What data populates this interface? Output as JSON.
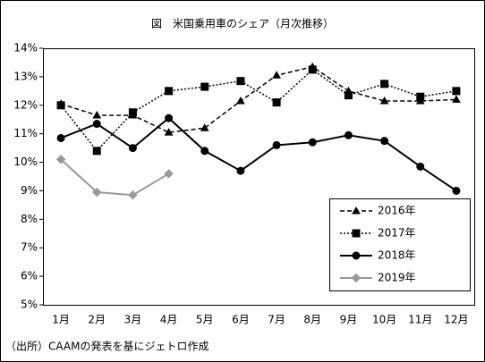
{
  "chart_data": {
    "type": "line",
    "title": "図　米国乗用車のシェア（月次推移）",
    "note": "（出所）CAAMの発表を基にジェトロ作成",
    "categories": [
      "1月",
      "2月",
      "3月",
      "4月",
      "5月",
      "6月",
      "7月",
      "8月",
      "9月",
      "10月",
      "11月",
      "12月"
    ],
    "series": [
      {
        "name": "2016年",
        "color": "#000000",
        "dash": "dashed",
        "marker": "triangle",
        "values": [
          12.05,
          11.65,
          11.65,
          11.05,
          11.2,
          12.15,
          13.05,
          13.35,
          12.5,
          12.15,
          12.15,
          12.2
        ]
      },
      {
        "name": "2017年",
        "color": "#000000",
        "dash": "dotted",
        "marker": "square",
        "values": [
          12.0,
          10.4,
          11.75,
          12.5,
          12.65,
          12.85,
          12.1,
          13.25,
          12.35,
          12.75,
          12.3,
          12.5
        ]
      },
      {
        "name": "2018年",
        "color": "#000000",
        "dash": "solid",
        "marker": "circle",
        "values": [
          10.85,
          11.35,
          10.5,
          11.55,
          10.4,
          9.7,
          10.6,
          10.7,
          10.95,
          10.75,
          9.85,
          9.0
        ]
      },
      {
        "name": "2019年",
        "color": "#999999",
        "dash": "solid",
        "marker": "diamond",
        "values": [
          10.1,
          8.95,
          8.85,
          9.6,
          null,
          null,
          null,
          null,
          null,
          null,
          null,
          null
        ]
      }
    ],
    "ylim": [
      5,
      14
    ],
    "yticks": [
      {
        "value": 5,
        "label": "5%"
      },
      {
        "value": 6,
        "label": "6%"
      },
      {
        "value": 7,
        "label": "7%"
      },
      {
        "value": 8,
        "label": "8%"
      },
      {
        "value": 9,
        "label": "9%"
      },
      {
        "value": 10,
        "label": "10%"
      },
      {
        "value": 11,
        "label": "11%"
      },
      {
        "value": 12,
        "label": "12%"
      },
      {
        "value": 13,
        "label": "13%"
      },
      {
        "value": 14,
        "label": "14%"
      }
    ],
    "grid": false,
    "legend": "lower right"
  }
}
